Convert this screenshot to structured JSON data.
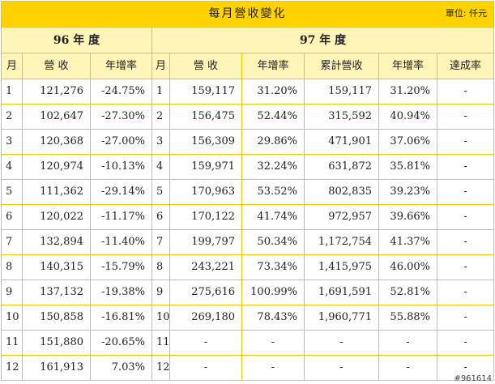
{
  "title": "每月營收變化",
  "unit": "單位: 仟元",
  "groups": {
    "y96": "96 年 度",
    "y97": "97 年 度"
  },
  "headers": {
    "month": "月",
    "revenue": "營 收",
    "yoy": "年增率",
    "cumulative": "累計營收",
    "achievement": "達成率"
  },
  "rows": [
    {
      "m96": "1",
      "rev96": "121,276",
      "yoy96": "-24.75%",
      "m97": "1",
      "rev97": "159,117",
      "yoy97": "31.20%",
      "cum97": "159,117",
      "cumyoy97": "31.20%",
      "ach97": "-"
    },
    {
      "m96": "2",
      "rev96": "102,647",
      "yoy96": "-27.30%",
      "m97": "2",
      "rev97": "156,475",
      "yoy97": "52.44%",
      "cum97": "315,592",
      "cumyoy97": "40.94%",
      "ach97": "-"
    },
    {
      "m96": "3",
      "rev96": "120,368",
      "yoy96": "-27.00%",
      "m97": "3",
      "rev97": "156,309",
      "yoy97": "29.86%",
      "cum97": "471,901",
      "cumyoy97": "37.06%",
      "ach97": "-"
    },
    {
      "m96": "4",
      "rev96": "120,974",
      "yoy96": "-10.13%",
      "m97": "4",
      "rev97": "159,971",
      "yoy97": "32.24%",
      "cum97": "631,872",
      "cumyoy97": "35.81%",
      "ach97": "-"
    },
    {
      "m96": "5",
      "rev96": "111,362",
      "yoy96": "-29.14%",
      "m97": "5",
      "rev97": "170,963",
      "yoy97": "53.52%",
      "cum97": "802,835",
      "cumyoy97": "39.23%",
      "ach97": "-"
    },
    {
      "m96": "6",
      "rev96": "120,022",
      "yoy96": "-11.17%",
      "m97": "6",
      "rev97": "170,122",
      "yoy97": "41.74%",
      "cum97": "972,957",
      "cumyoy97": "39.66%",
      "ach97": "-"
    },
    {
      "m96": "7",
      "rev96": "132,894",
      "yoy96": "-11.40%",
      "m97": "7",
      "rev97": "199,797",
      "yoy97": "50.34%",
      "cum97": "1,172,754",
      "cumyoy97": "41.37%",
      "ach97": "-"
    },
    {
      "m96": "8",
      "rev96": "140,315",
      "yoy96": "-15.79%",
      "m97": "8",
      "rev97": "243,221",
      "yoy97": "73.34%",
      "cum97": "1,415,975",
      "cumyoy97": "46.00%",
      "ach97": "-"
    },
    {
      "m96": "9",
      "rev96": "137,132",
      "yoy96": "-19.38%",
      "m97": "9",
      "rev97": "275,616",
      "yoy97": "100.99%",
      "cum97": "1,691,591",
      "cumyoy97": "52.81%",
      "ach97": "-"
    },
    {
      "m96": "10",
      "rev96": "150,858",
      "yoy96": "-16.81%",
      "m97": "10",
      "rev97": "269,180",
      "yoy97": "78.43%",
      "cum97": "1,960,771",
      "cumyoy97": "55.88%",
      "ach97": "-"
    },
    {
      "m96": "11",
      "rev96": "151,880",
      "yoy96": "-20.65%",
      "m97": "11",
      "rev97": "-",
      "yoy97": "-",
      "cum97": "-",
      "cumyoy97": "-",
      "ach97": "-"
    },
    {
      "m96": "12",
      "rev96": "161,913",
      "yoy96": "7.03%",
      "m97": "12",
      "rev97": "-",
      "yoy97": "-",
      "cum97": "-",
      "cumyoy97": "-",
      "ach97": "-"
    }
  ],
  "watermark": "#961614",
  "colors": {
    "title_bg": "#ffd200",
    "header_bg": "#fff5b8",
    "border": "#f5c400"
  }
}
